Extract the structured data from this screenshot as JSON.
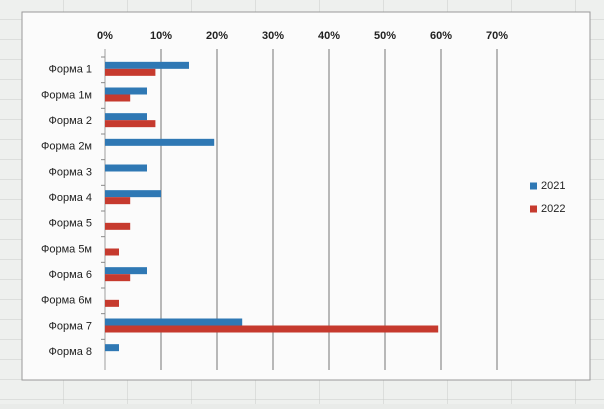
{
  "chart_data": {
    "type": "barh",
    "categories": [
      "Форма 1",
      "Форма 1м",
      "Форма 2",
      "Форма 2м",
      "Форма 3",
      "Форма 4",
      "Форма 5",
      "Форма 5м",
      "Форма 6",
      "Форма 6м",
      "Форма 7",
      "Форма 8"
    ],
    "series": [
      {
        "name": "2021",
        "color": "#2f78b4",
        "values": [
          15,
          7.5,
          7.5,
          19.5,
          7.5,
          10,
          null,
          null,
          7.5,
          null,
          24.5,
          2.5
        ]
      },
      {
        "name": "2022",
        "color": "#c63a2e",
        "values": [
          9,
          4.5,
          9,
          null,
          null,
          4.5,
          4.5,
          2.5,
          4.5,
          2.5,
          59.5,
          null
        ]
      }
    ],
    "xlim": [
      0,
      70
    ],
    "xticks": [
      {
        "value": 0,
        "label": "0%"
      },
      {
        "value": 10,
        "label": "10%"
      },
      {
        "value": 20,
        "label": "20%"
      },
      {
        "value": 30,
        "label": "30%"
      },
      {
        "value": 40,
        "label": "40%"
      },
      {
        "value": 50,
        "label": "50%"
      },
      {
        "value": 60,
        "label": "60%"
      },
      {
        "value": 70,
        "label": "70%"
      }
    ],
    "grid": true,
    "legend": "right"
  }
}
